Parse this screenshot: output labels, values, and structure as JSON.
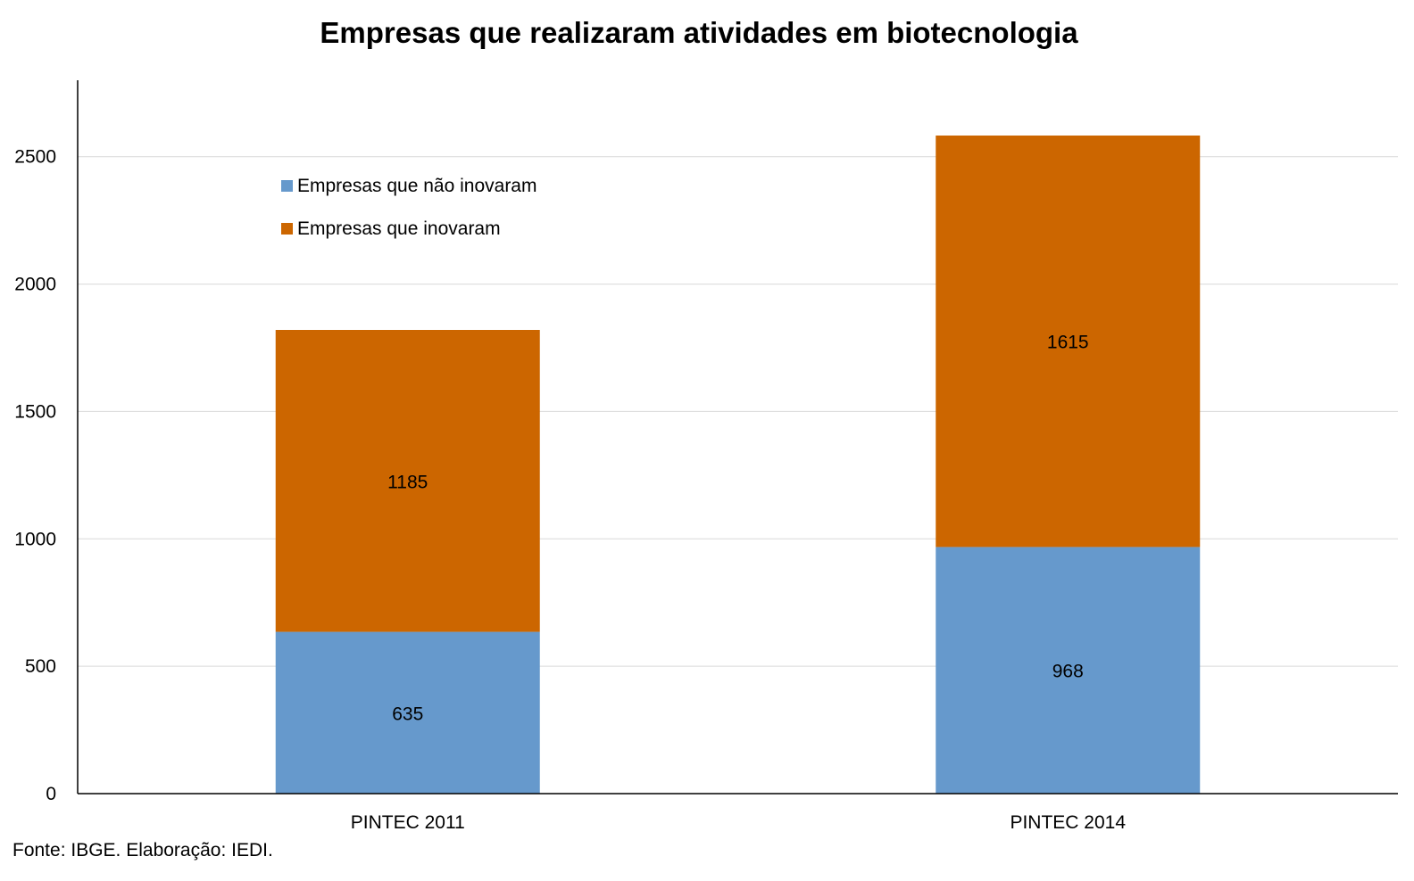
{
  "chart_data": {
    "type": "bar",
    "stacked": true,
    "title": "Empresas que realizaram atividades em biotecnologia",
    "categories": [
      "PINTEC 2011",
      "PINTEC 2014"
    ],
    "series": [
      {
        "name": "Empresas que não inovaram",
        "values": [
          635,
          968
        ],
        "color": "#6699CC"
      },
      {
        "name": "Empresas que inovaram",
        "values": [
          1185,
          1615
        ],
        "color": "#CC6600"
      }
    ],
    "ylim": [
      0,
      2800
    ],
    "yticks": [
      0,
      500,
      1000,
      1500,
      2000,
      2500
    ],
    "grid": true,
    "legend_position": "top-left inside plot",
    "data_labels": true
  },
  "source": "Fonte: IBGE. Elaboração: IEDI.",
  "colors": {
    "gridline": "#D9D9D9",
    "axis": "#000000"
  }
}
